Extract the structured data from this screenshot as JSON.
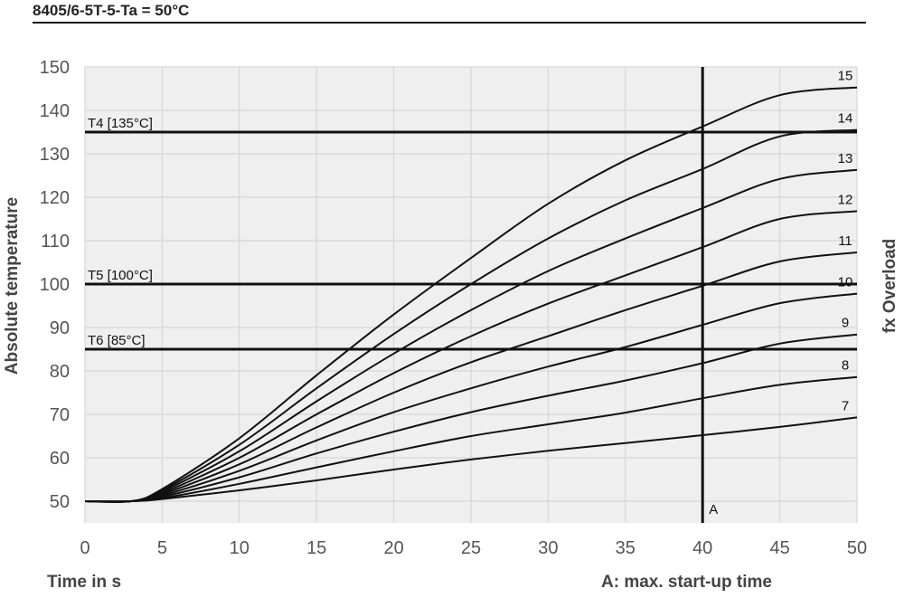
{
  "chart_data": {
    "type": "line",
    "title": "8405/6-5T-5-Ta = 50°C",
    "xlabel": "Time in s",
    "ylabel": "Absolute temperature",
    "right_label": "fx Overload",
    "note": "A: max. start-up time",
    "xlim": [
      0,
      50
    ],
    "ylim": [
      45,
      150
    ],
    "x_ticks": [
      0,
      5,
      10,
      15,
      20,
      25,
      30,
      35,
      40,
      45,
      50
    ],
    "y_ticks": [
      50,
      60,
      70,
      80,
      90,
      100,
      110,
      120,
      130,
      140,
      150
    ],
    "grid": true,
    "x": [
      0,
      3,
      5,
      10,
      15,
      20,
      25,
      30,
      35,
      40,
      45,
      50
    ],
    "series": [
      {
        "name": "7",
        "values": [
          50,
          50,
          50.5,
          52.5,
          54.8,
          57.3,
          59.6,
          61.6,
          63.4,
          65.2,
          67.1,
          69.3
        ]
      },
      {
        "name": "8",
        "values": [
          50,
          50,
          50.7,
          54,
          57.8,
          61.5,
          65,
          67.7,
          70.4,
          73.7,
          76.8,
          78.6
        ]
      },
      {
        "name": "9",
        "values": [
          50,
          50,
          51,
          55.5,
          61,
          66,
          70.5,
          74.3,
          77.8,
          81.8,
          86.3,
          88.4
        ]
      },
      {
        "name": "10",
        "values": [
          50,
          50,
          51.3,
          57,
          64,
          70.5,
          76,
          81,
          85.5,
          90.6,
          95.6,
          97.8
        ]
      },
      {
        "name": "11",
        "values": [
          50,
          50,
          51.6,
          58.5,
          67,
          75,
          82,
          88,
          94,
          99.6,
          105.2,
          107.3
        ]
      },
      {
        "name": "12",
        "values": [
          50,
          50,
          51.9,
          60,
          70,
          79.5,
          88,
          95.5,
          102,
          108.5,
          115,
          116.8
        ]
      },
      {
        "name": "13",
        "values": [
          50,
          50,
          52.2,
          61.5,
          73,
          84,
          94,
          103,
          110.5,
          117.5,
          124.2,
          126.3
        ]
      },
      {
        "name": "14",
        "values": [
          50,
          50,
          52.5,
          63,
          76,
          88.5,
          100,
          110.5,
          119.3,
          126.5,
          134,
          135.5
        ]
      },
      {
        "name": "15",
        "values": [
          50,
          50,
          52.8,
          64.5,
          79,
          93,
          106,
          118.5,
          128.5,
          136.3,
          143.5,
          145.3
        ]
      }
    ],
    "thresholds": [
      {
        "label": "T4 [135°C]",
        "value": 135
      },
      {
        "label": "T5 [100°C]",
        "value": 100
      },
      {
        "label": "T6 [85°C]",
        "value": 85
      }
    ],
    "marker": {
      "label": "A",
      "x": 40
    }
  }
}
